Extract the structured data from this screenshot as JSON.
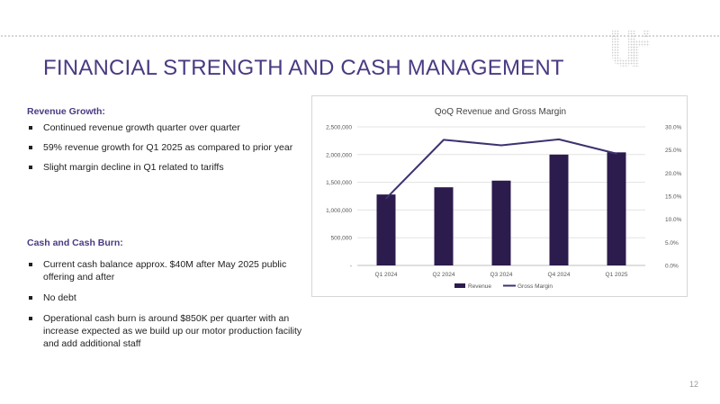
{
  "slide": {
    "title": "FINANCIAL STRENGTH AND CASH MANAGEMENT",
    "page_number": "12"
  },
  "revenue_growth": {
    "heading": "Revenue Growth:",
    "bullets": [
      "Continued revenue growth quarter over quarter",
      "59% revenue growth for Q1 2025 as compared to prior year",
      "Slight margin decline in Q1 related to tariffs"
    ]
  },
  "cash_burn": {
    "heading": "Cash and Cash Burn:",
    "bullets": [
      "Current cash balance approx. $40M after May 2025 public offering and after",
      "No debt",
      "Operational cash burn is around $850K per quarter with an increase expected as we build up our motor production facility and add additional staff"
    ]
  },
  "colors": {
    "accent": "#4a3a82",
    "bar": "#2c1b4d",
    "line": "#3d3270"
  },
  "chart_data": {
    "type": "bar",
    "title": "QoQ Revenue and Gross Margin",
    "categories": [
      "Q1 2024",
      "Q2 2024",
      "Q3 2024",
      "Q4 2024",
      "Q1 2025"
    ],
    "series": [
      {
        "name": "Revenue",
        "type": "bar",
        "axis": "left",
        "values": [
          1280000,
          1410000,
          1530000,
          2000000,
          2040000
        ]
      },
      {
        "name": "Gross Margin",
        "type": "line",
        "axis": "right",
        "values": [
          0.145,
          0.272,
          0.26,
          0.273,
          0.242
        ]
      }
    ],
    "y_left": {
      "min": 0,
      "max": 2500000,
      "ticks": [
        0,
        500000,
        1000000,
        1500000,
        2000000,
        2500000
      ],
      "tick_labels": [
        "-",
        "500,000",
        "1,000,000",
        "1,500,000",
        "2,000,000",
        "2,500,000"
      ]
    },
    "y_right": {
      "min": 0,
      "max": 0.3,
      "ticks": [
        0,
        0.05,
        0.1,
        0.15,
        0.2,
        0.25,
        0.3
      ],
      "tick_labels": [
        "0.0%",
        "5.0%",
        "10.0%",
        "15.0%",
        "20.0%",
        "25.0%",
        "30.0%"
      ]
    },
    "grid": true,
    "legend": "bottom"
  }
}
